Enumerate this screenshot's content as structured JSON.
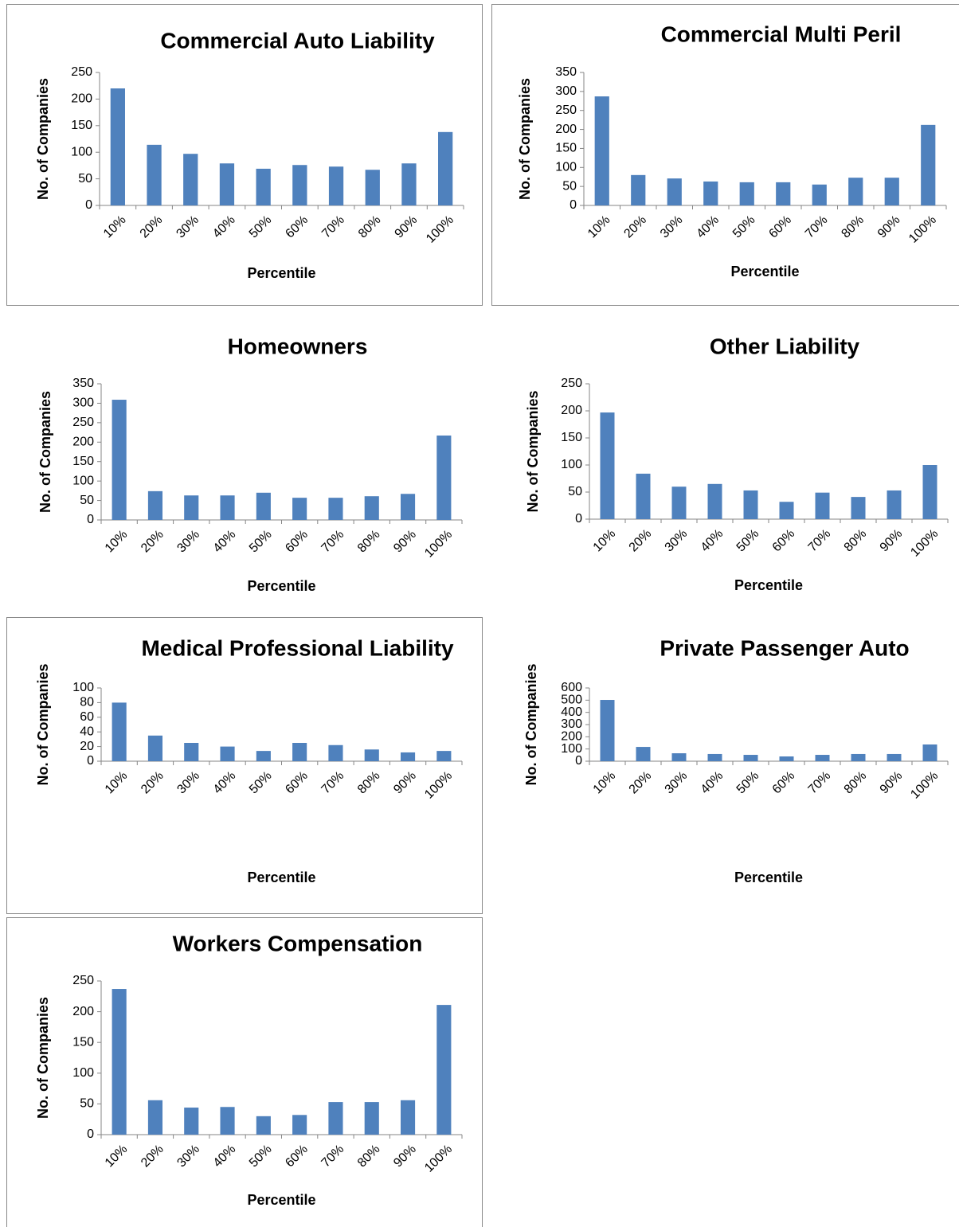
{
  "chart_data": [
    {
      "type": "bar",
      "title": "Commercial Auto Liability",
      "xlabel": "Percentile",
      "ylabel": "No. of Companies",
      "categories": [
        "10%",
        "20%",
        "30%",
        "40%",
        "50%",
        "60%",
        "70%",
        "80%",
        "90%",
        "100%"
      ],
      "values": [
        220,
        114,
        97,
        79,
        69,
        76,
        73,
        67,
        79,
        138
      ],
      "color": "#4f81bd",
      "ylim": [
        0,
        250
      ],
      "yticks": [
        0,
        50,
        100,
        150,
        200,
        250
      ]
    },
    {
      "type": "bar",
      "title": "Commercial Multi Peril",
      "xlabel": "Percentile",
      "ylabel": "No. of Companies",
      "categories": [
        "10%",
        "20%",
        "30%",
        "40%",
        "50%",
        "60%",
        "70%",
        "80%",
        "90%",
        "100%"
      ],
      "values": [
        287,
        80,
        71,
        63,
        61,
        61,
        55,
        73,
        73,
        212
      ],
      "color": "#4f81bd",
      "ylim": [
        0,
        350
      ],
      "yticks": [
        0,
        50,
        100,
        150,
        200,
        250,
        300,
        350
      ]
    },
    {
      "type": "bar",
      "title": "Homeowners",
      "xlabel": "Percentile",
      "ylabel": "No. of Companies",
      "categories": [
        "10%",
        "20%",
        "30%",
        "40%",
        "50%",
        "60%",
        "70%",
        "80%",
        "90%",
        "100%"
      ],
      "values": [
        309,
        74,
        63,
        63,
        70,
        57,
        57,
        61,
        67,
        217
      ],
      "color": "#4f81bd",
      "ylim": [
        0,
        350
      ],
      "yticks": [
        0,
        50,
        100,
        150,
        200,
        250,
        300,
        350
      ]
    },
    {
      "type": "bar",
      "title": "Other Liability",
      "xlabel": "Percentile",
      "ylabel": "No. of Companies",
      "categories": [
        "10%",
        "20%",
        "30%",
        "40%",
        "50%",
        "60%",
        "70%",
        "80%",
        "90%",
        "100%"
      ],
      "values": [
        197,
        84,
        60,
        65,
        53,
        32,
        49,
        41,
        53,
        100
      ],
      "color": "#4f81bd",
      "ylim": [
        0,
        250
      ],
      "yticks": [
        0,
        50,
        100,
        150,
        200,
        250
      ]
    },
    {
      "type": "bar",
      "title": "Medical Professional  Liability",
      "xlabel": "Percentile",
      "ylabel": "No. of Companies",
      "categories": [
        "10%",
        "20%",
        "30%",
        "40%",
        "50%",
        "60%",
        "70%",
        "80%",
        "90%",
        "100%"
      ],
      "values": [
        80,
        35,
        25,
        20,
        14,
        25,
        22,
        16,
        12,
        14
      ],
      "color": "#4f81bd",
      "ylim": [
        0,
        100
      ],
      "yticks": [
        0,
        20,
        40,
        60,
        80,
        100
      ]
    },
    {
      "type": "bar",
      "title": "Private Passenger  Auto",
      "xlabel": "Percentile",
      "ylabel": "No. of Companies",
      "categories": [
        "10%",
        "20%",
        "30%",
        "40%",
        "50%",
        "60%",
        "70%",
        "80%",
        "90%",
        "100%"
      ],
      "values": [
        502,
        117,
        65,
        59,
        52,
        39,
        52,
        59,
        59,
        137
      ],
      "color": "#4f81bd",
      "ylim": [
        0,
        600
      ],
      "yticks": [
        0,
        100,
        200,
        300,
        400,
        500,
        600
      ]
    },
    {
      "type": "bar",
      "title": "Workers Compensation",
      "xlabel": "Percentile",
      "ylabel": "No. of Companies",
      "categories": [
        "10%",
        "20%",
        "30%",
        "40%",
        "50%",
        "60%",
        "70%",
        "80%",
        "90%",
        "100%"
      ],
      "values": [
        237,
        56,
        44,
        45,
        30,
        32,
        53,
        53,
        56,
        211
      ],
      "color": "#4f81bd",
      "ylim": [
        0,
        250
      ],
      "yticks": [
        0,
        50,
        100,
        150,
        200,
        250
      ]
    }
  ]
}
